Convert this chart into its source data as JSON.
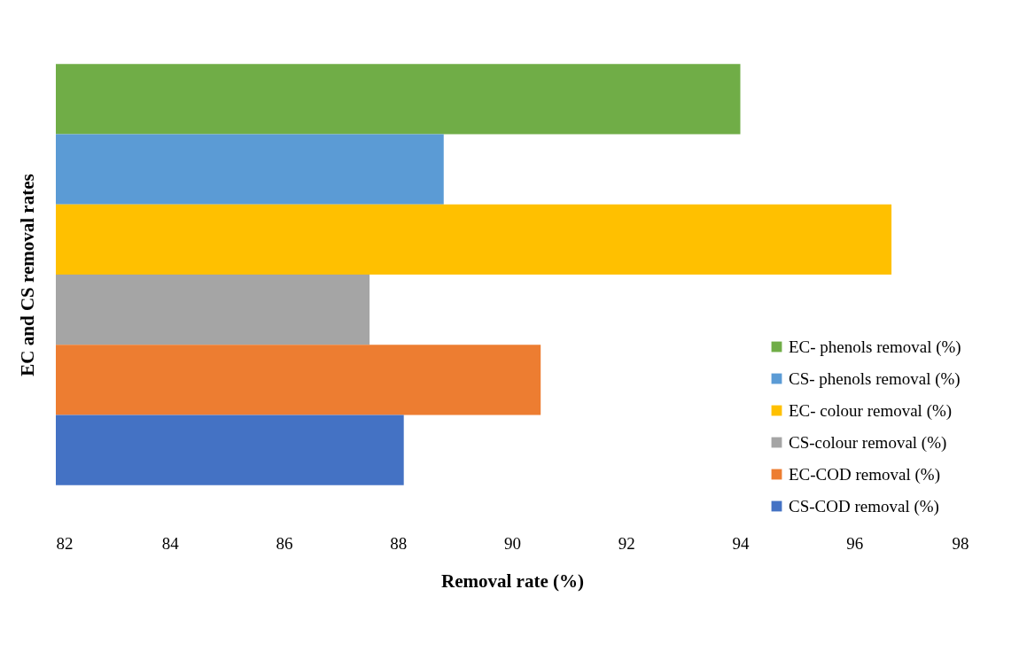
{
  "chart_data": {
    "type": "bar",
    "orientation": "horizontal",
    "xlabel": "Removal rate (%)",
    "ylabel": "EC and CS removal rates",
    "categories": [
      null
    ],
    "series": [
      {
        "name": "EC- phenols removal (%)",
        "color": "#70ad47",
        "values": [
          94.0
        ]
      },
      {
        "name": "CS- phenols removal (%)",
        "color": "#5b9bd5",
        "values": [
          88.8
        ]
      },
      {
        "name": "EC- colour removal (%)",
        "color": "#ffc000",
        "values": [
          96.65
        ]
      },
      {
        "name": "CS-colour removal (%)",
        "color": "#a5a5a5",
        "values": [
          87.5
        ]
      },
      {
        "name": "EC-COD removal (%)",
        "color": "#ed7d31",
        "values": [
          90.5
        ]
      },
      {
        "name": "CS-COD removal (%)",
        "color": "#4472c4",
        "values": [
          88.1
        ]
      }
    ],
    "xlim": [
      82,
      98
    ],
    "xticks": [
      82,
      84,
      86,
      88,
      90,
      92,
      94,
      96,
      98
    ],
    "grid": false,
    "legend": "bottom right"
  }
}
